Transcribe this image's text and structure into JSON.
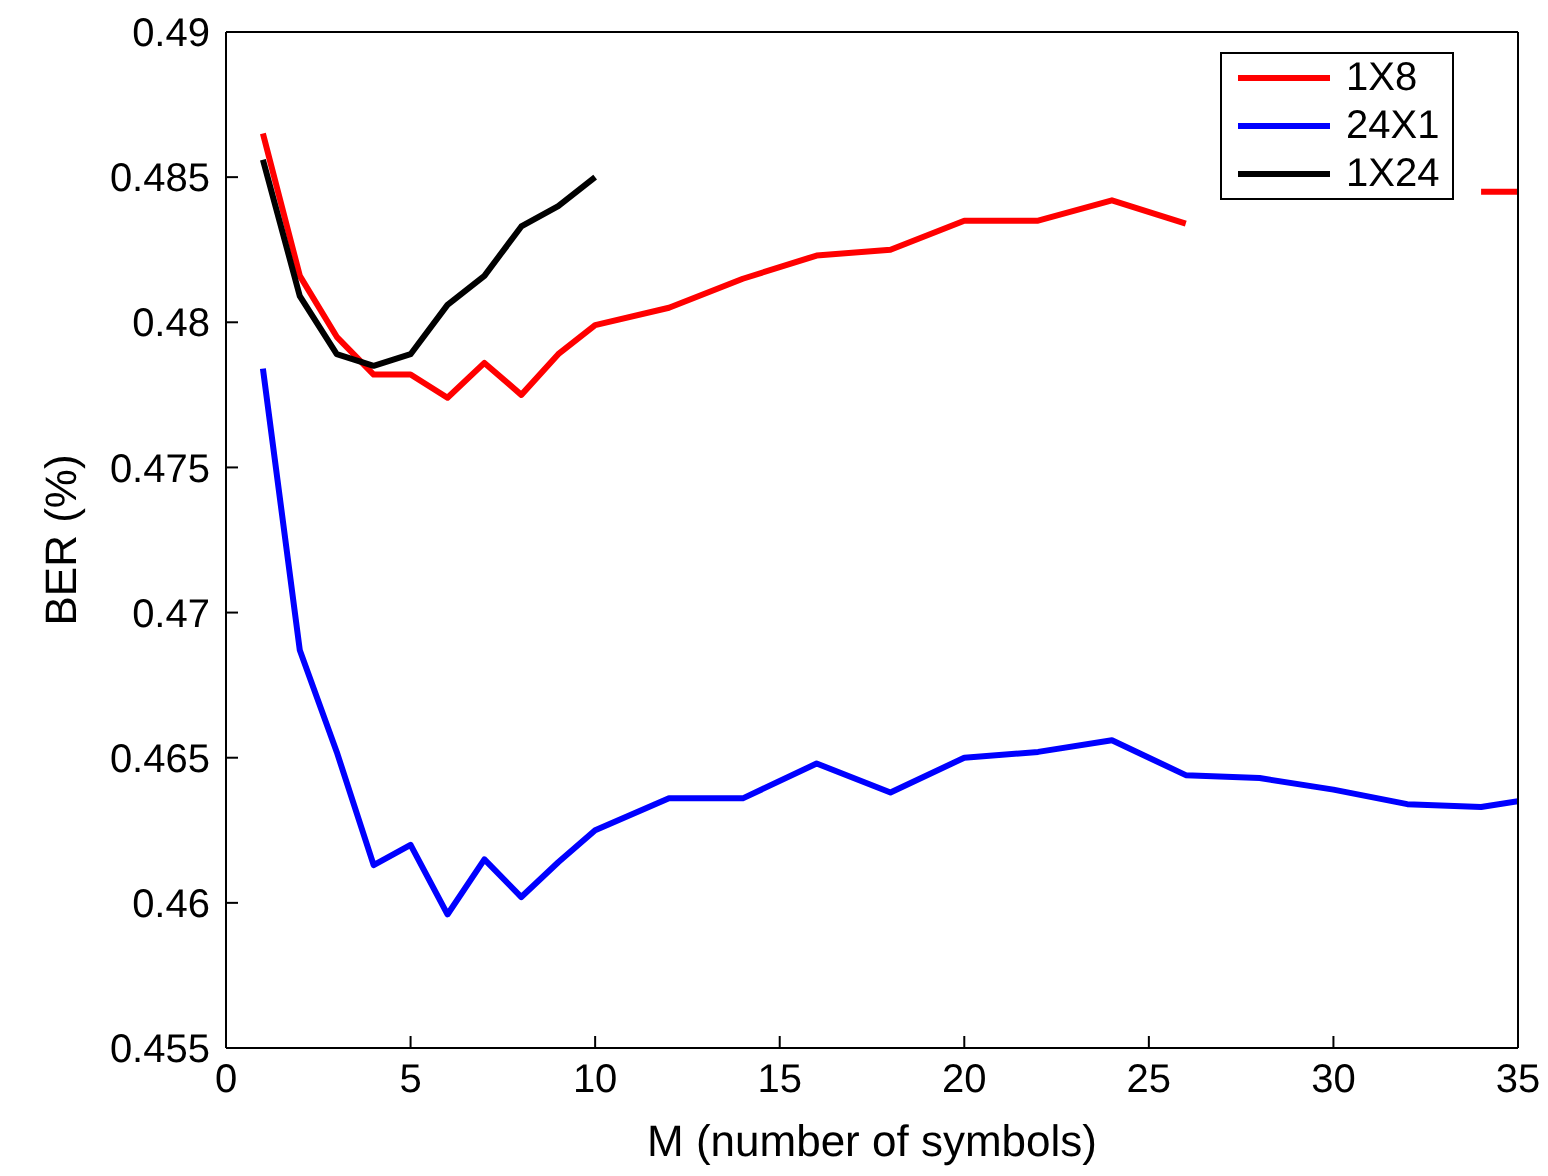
{
  "chart_data": {
    "type": "line",
    "xlabel": "M (number of symbols)",
    "ylabel": "BER (%)",
    "xlim": [
      0,
      35
    ],
    "xticks": [
      0,
      5,
      10,
      15,
      20,
      25,
      30,
      35
    ],
    "ylim": [
      0.455,
      0.49
    ],
    "yticks": [
      0.455,
      0.46,
      0.465,
      0.47,
      0.475,
      0.48,
      0.485,
      0.49
    ],
    "legend": "top right",
    "marker": "none",
    "line_style": "solid",
    "series": [
      {
        "name": "1X8",
        "color": "#ff0000",
        "x": [
          1,
          2,
          3,
          4,
          5,
          6,
          7,
          8,
          9,
          10,
          12,
          14,
          16,
          18,
          20,
          22,
          24,
          26,
          28,
          30,
          32,
          34,
          35
        ],
        "values": [
          0.4865,
          0.4816,
          0.4795,
          0.4782,
          0.4782,
          0.4774,
          0.4786,
          0.4775,
          0.4789,
          0.4799,
          0.4805,
          0.4815,
          0.4823,
          0.4825,
          0.4835,
          0.4835,
          0.4842,
          0.4834,
          null,
          null,
          null,
          0.4845,
          0.4845
        ]
      },
      {
        "name": "24X1",
        "color": "#0000ff",
        "x": [
          1,
          2,
          3,
          4,
          5,
          6,
          7,
          8,
          9,
          10,
          12,
          14,
          16,
          18,
          20,
          22,
          24,
          26,
          28,
          30,
          32,
          34,
          35
        ],
        "values": [
          0.4784,
          0.4687,
          0.4652,
          0.4613,
          0.462,
          0.4596,
          0.4615,
          0.4602,
          0.4614,
          0.4625,
          0.4636,
          0.4636,
          0.4648,
          0.4638,
          0.465,
          0.4652,
          0.4656,
          0.4644,
          0.4643,
          0.4639,
          0.4634,
          0.4633,
          0.4635
        ]
      },
      {
        "name": "1X24",
        "color": "#000000",
        "x": [
          1,
          2,
          3,
          4,
          5,
          6,
          7,
          8,
          9,
          10
        ],
        "values": [
          0.4856,
          0.4809,
          0.4789,
          0.4785,
          0.4789,
          0.4806,
          0.4816,
          0.4833,
          0.484,
          0.485
        ]
      }
    ]
  }
}
